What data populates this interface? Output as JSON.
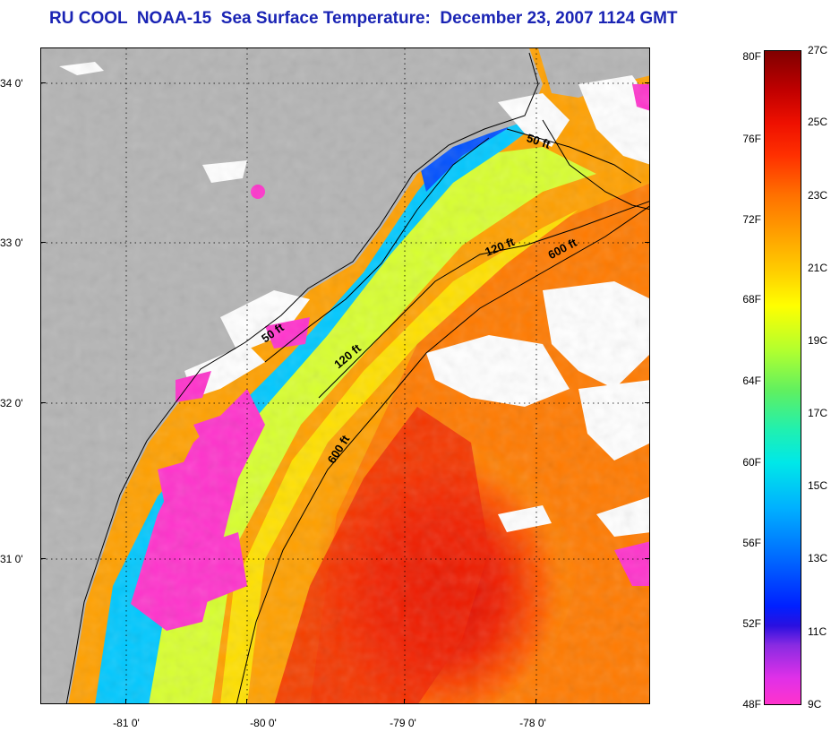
{
  "title": "RU COOL  NOAA-15  Sea Surface Temperature:  December 23, 2007 1124 GMT",
  "map": {
    "lat_labels": [
      "34 0'",
      "33 0'",
      "32 0'",
      "31 0'"
    ],
    "lon_labels": [
      "-81 0'",
      "-80 0'",
      "-79 0'",
      "-78 0'"
    ],
    "contour_labels": [
      "50 ft",
      "120 ft",
      "600 ft",
      "50 ft",
      "120 ft",
      "600 ft"
    ],
    "colors": {
      "land": "#b4b4b4",
      "cloud": "#ffffff",
      "cold": "#ff33cc",
      "cool": "#00b0ff",
      "mid": "#ffff00",
      "warm": "#ff7000",
      "hot": "#e81000"
    }
  },
  "colorbar": {
    "fahrenheit_labels": [
      "80F",
      "76F",
      "72F",
      "68F",
      "64F",
      "60F",
      "56F",
      "52F",
      "48F"
    ],
    "celsius_labels": [
      "27C",
      "25C",
      "23C",
      "21C",
      "19C",
      "17C",
      "15C",
      "13C",
      "11C",
      "9C"
    ]
  }
}
